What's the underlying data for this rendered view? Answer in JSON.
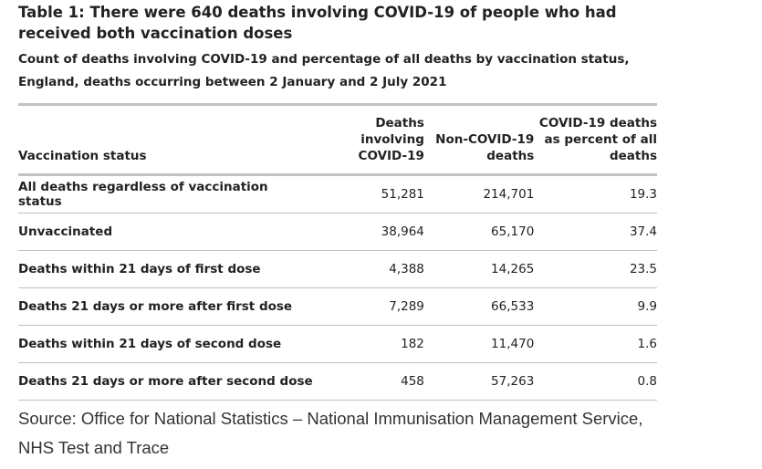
{
  "title": "Table 1: There were 640 deaths involving COVID-19 of people who had received both vaccination doses",
  "subtitle": "Count of deaths involving COVID-19 and percentage of all deaths by vaccination status, England, deaths occurring between 2 January and 2 July 2021",
  "columns": [
    "Vaccination status",
    "Deaths involving COVID-19",
    "Non-COVID-19 deaths",
    "COVID-19 deaths as percent of all deaths"
  ],
  "rows": [
    {
      "status": "All deaths regardless of vaccination status",
      "covid_deaths": "51,281",
      "non_covid_deaths": "214,701",
      "percent": "19.3"
    },
    {
      "status": "Unvaccinated",
      "covid_deaths": "38,964",
      "non_covid_deaths": "65,170",
      "percent": "37.4"
    },
    {
      "status": "Deaths within 21 days of first dose",
      "covid_deaths": "4,388",
      "non_covid_deaths": "14,265",
      "percent": "23.5"
    },
    {
      "status": "Deaths 21 days or more after first dose",
      "covid_deaths": "7,289",
      "non_covid_deaths": "66,533",
      "percent": "9.9"
    },
    {
      "status": "Deaths within 21 days of second dose",
      "covid_deaths": "182",
      "non_covid_deaths": "11,470",
      "percent": "1.6"
    },
    {
      "status": "Deaths 21 days or more after second dose",
      "covid_deaths": "458",
      "non_covid_deaths": "57,263",
      "percent": "0.8"
    }
  ],
  "source": "Source: Office for National Statistics – National Immunisation Management Service, NHS Test and Trace",
  "colors": {
    "text": "#222222",
    "rule": "#bfc1c3"
  }
}
